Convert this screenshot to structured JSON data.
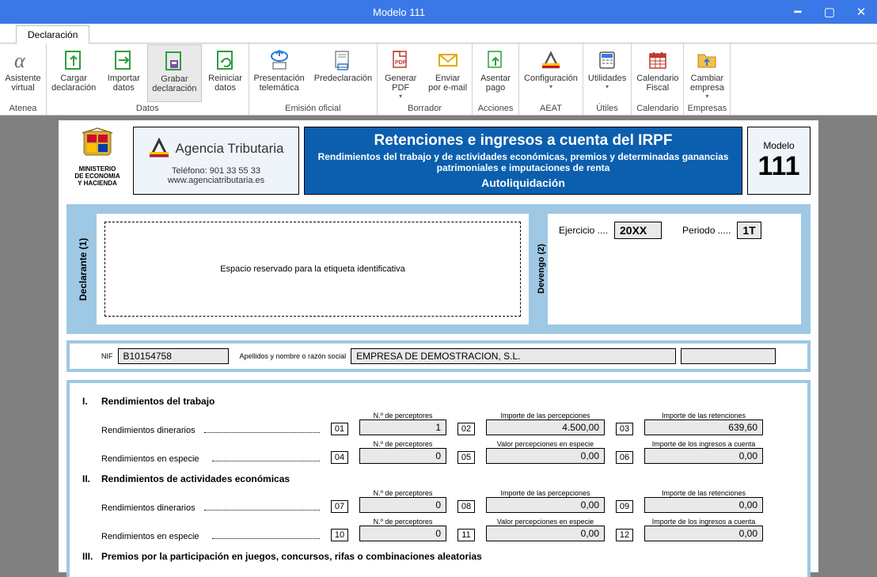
{
  "window": {
    "title": "Modelo 111"
  },
  "tab": {
    "label": "Declaración"
  },
  "ribbon": {
    "groups": [
      {
        "label": "Atenea",
        "buttons": [
          {
            "id": "asistente",
            "line1": "Asistente",
            "line2": "virtual"
          }
        ]
      },
      {
        "label": "Datos",
        "buttons": [
          {
            "id": "cargar",
            "line1": "Cargar",
            "line2": "declaración"
          },
          {
            "id": "importar",
            "line1": "Importar",
            "line2": "datos"
          },
          {
            "id": "grabar",
            "line1": "Grabar",
            "line2": "declaración",
            "active": true
          },
          {
            "id": "reiniciar",
            "line1": "Reiniciar",
            "line2": "datos"
          }
        ]
      },
      {
        "label": "Emisión oficial",
        "buttons": [
          {
            "id": "presentacion",
            "line1": "Presentación",
            "line2": "telemática"
          },
          {
            "id": "predecl",
            "line1": "Predeclaración",
            "line2": ""
          }
        ]
      },
      {
        "label": "Borrador",
        "buttons": [
          {
            "id": "generarpdf",
            "line1": "Generar",
            "line2": "PDF",
            "dropdown": true
          },
          {
            "id": "enviar",
            "line1": "Enviar",
            "line2": "por e-mail"
          }
        ]
      },
      {
        "label": "Acciones",
        "buttons": [
          {
            "id": "asentar",
            "line1": "Asentar",
            "line2": "pago"
          }
        ]
      },
      {
        "label": "AEAT",
        "buttons": [
          {
            "id": "config",
            "line1": "Configuración",
            "line2": "",
            "dropdown": true
          }
        ]
      },
      {
        "label": "Útiles",
        "buttons": [
          {
            "id": "utilidades",
            "line1": "Utilidades",
            "line2": "",
            "dropdown": true
          }
        ]
      },
      {
        "label": "Calendario",
        "buttons": [
          {
            "id": "calendario",
            "line1": "Calendario",
            "line2": "Fiscal"
          }
        ]
      },
      {
        "label": "Empresas",
        "buttons": [
          {
            "id": "cambiar",
            "line1": "Cambiar",
            "line2": "empresa",
            "dropdown": true
          }
        ]
      }
    ]
  },
  "form_header": {
    "ministerio_l1": "MINISTERIO",
    "ministerio_l2": "DE ECONOMIA",
    "ministerio_l3": "Y HACIENDA",
    "agencia_name": "Agencia Tributaria",
    "agencia_tel_lbl": "Teléfono:",
    "agencia_tel": "901 33 55 33",
    "agencia_web": "www.agenciatributaria.es",
    "blue_h1": "Retenciones e ingresos a cuenta del IRPF",
    "blue_h2": "Rendimientos del trabajo y de actividades económicas, premios y determinadas ganancias patrimoniales e imputaciones de renta",
    "blue_h3": "Autoliquidación",
    "modelo_lbl": "Modelo",
    "modelo_num": "111"
  },
  "declarante": {
    "side_lbl": "Declarante (1)",
    "etiqueta_text": "Espacio reservado para la etiqueta identificativa",
    "devengo_side": "Devengo (2)",
    "ejercicio_lbl": "Ejercicio ....",
    "ejercicio_val": "20XX",
    "periodo_lbl": "Periodo .....",
    "periodo_val": "1T",
    "nif_lbl": "NIF",
    "nif_val": "B10154758",
    "razon_lbl": "Apellidos y nombre o razón social",
    "razon_val": "EMPRESA DE DEMOSTRACION, S.L."
  },
  "section_labels": {
    "s1": "Rendimientos del trabajo",
    "s2": "Rendimientos de actividades económicas",
    "s3": "Premios por la participación en juegos, concursos, rifas o combinaciones aleatorias",
    "rend_dinerarios": "Rendimientos dinerarios",
    "rend_especie": "Rendimientos en especie",
    "col_perceptores": "N.º de perceptores",
    "col_importe_perc": "Importe de las percepciones",
    "col_importe_ret": "Importe de las retenciones",
    "col_valor_especie": "Valor percepciones en especie",
    "col_ingresos_cuenta": "Importe de los ingresos a cuenta"
  },
  "rows": {
    "r01": {
      "num": "01",
      "val": "1"
    },
    "r02": {
      "num": "02",
      "val": "4.500,00"
    },
    "r03": {
      "num": "03",
      "val": "639,60"
    },
    "r04": {
      "num": "04",
      "val": "0"
    },
    "r05": {
      "num": "05",
      "val": "0,00"
    },
    "r06": {
      "num": "06",
      "val": "0,00"
    },
    "r07": {
      "num": "07",
      "val": "0"
    },
    "r08": {
      "num": "08",
      "val": "0,00"
    },
    "r09": {
      "num": "09",
      "val": "0,00"
    },
    "r10": {
      "num": "10",
      "val": "0"
    },
    "r11": {
      "num": "11",
      "val": "0,00"
    },
    "r12": {
      "num": "12",
      "val": "0,00"
    }
  },
  "colors": {
    "titlebar": "#3b78e7",
    "ribbon_border": "#c0c0c0",
    "workspace_bg": "#808080",
    "form_blue": "#0b5fae",
    "form_lightblue": "#9ec8e4",
    "input_bg": "#e9e9e9"
  }
}
